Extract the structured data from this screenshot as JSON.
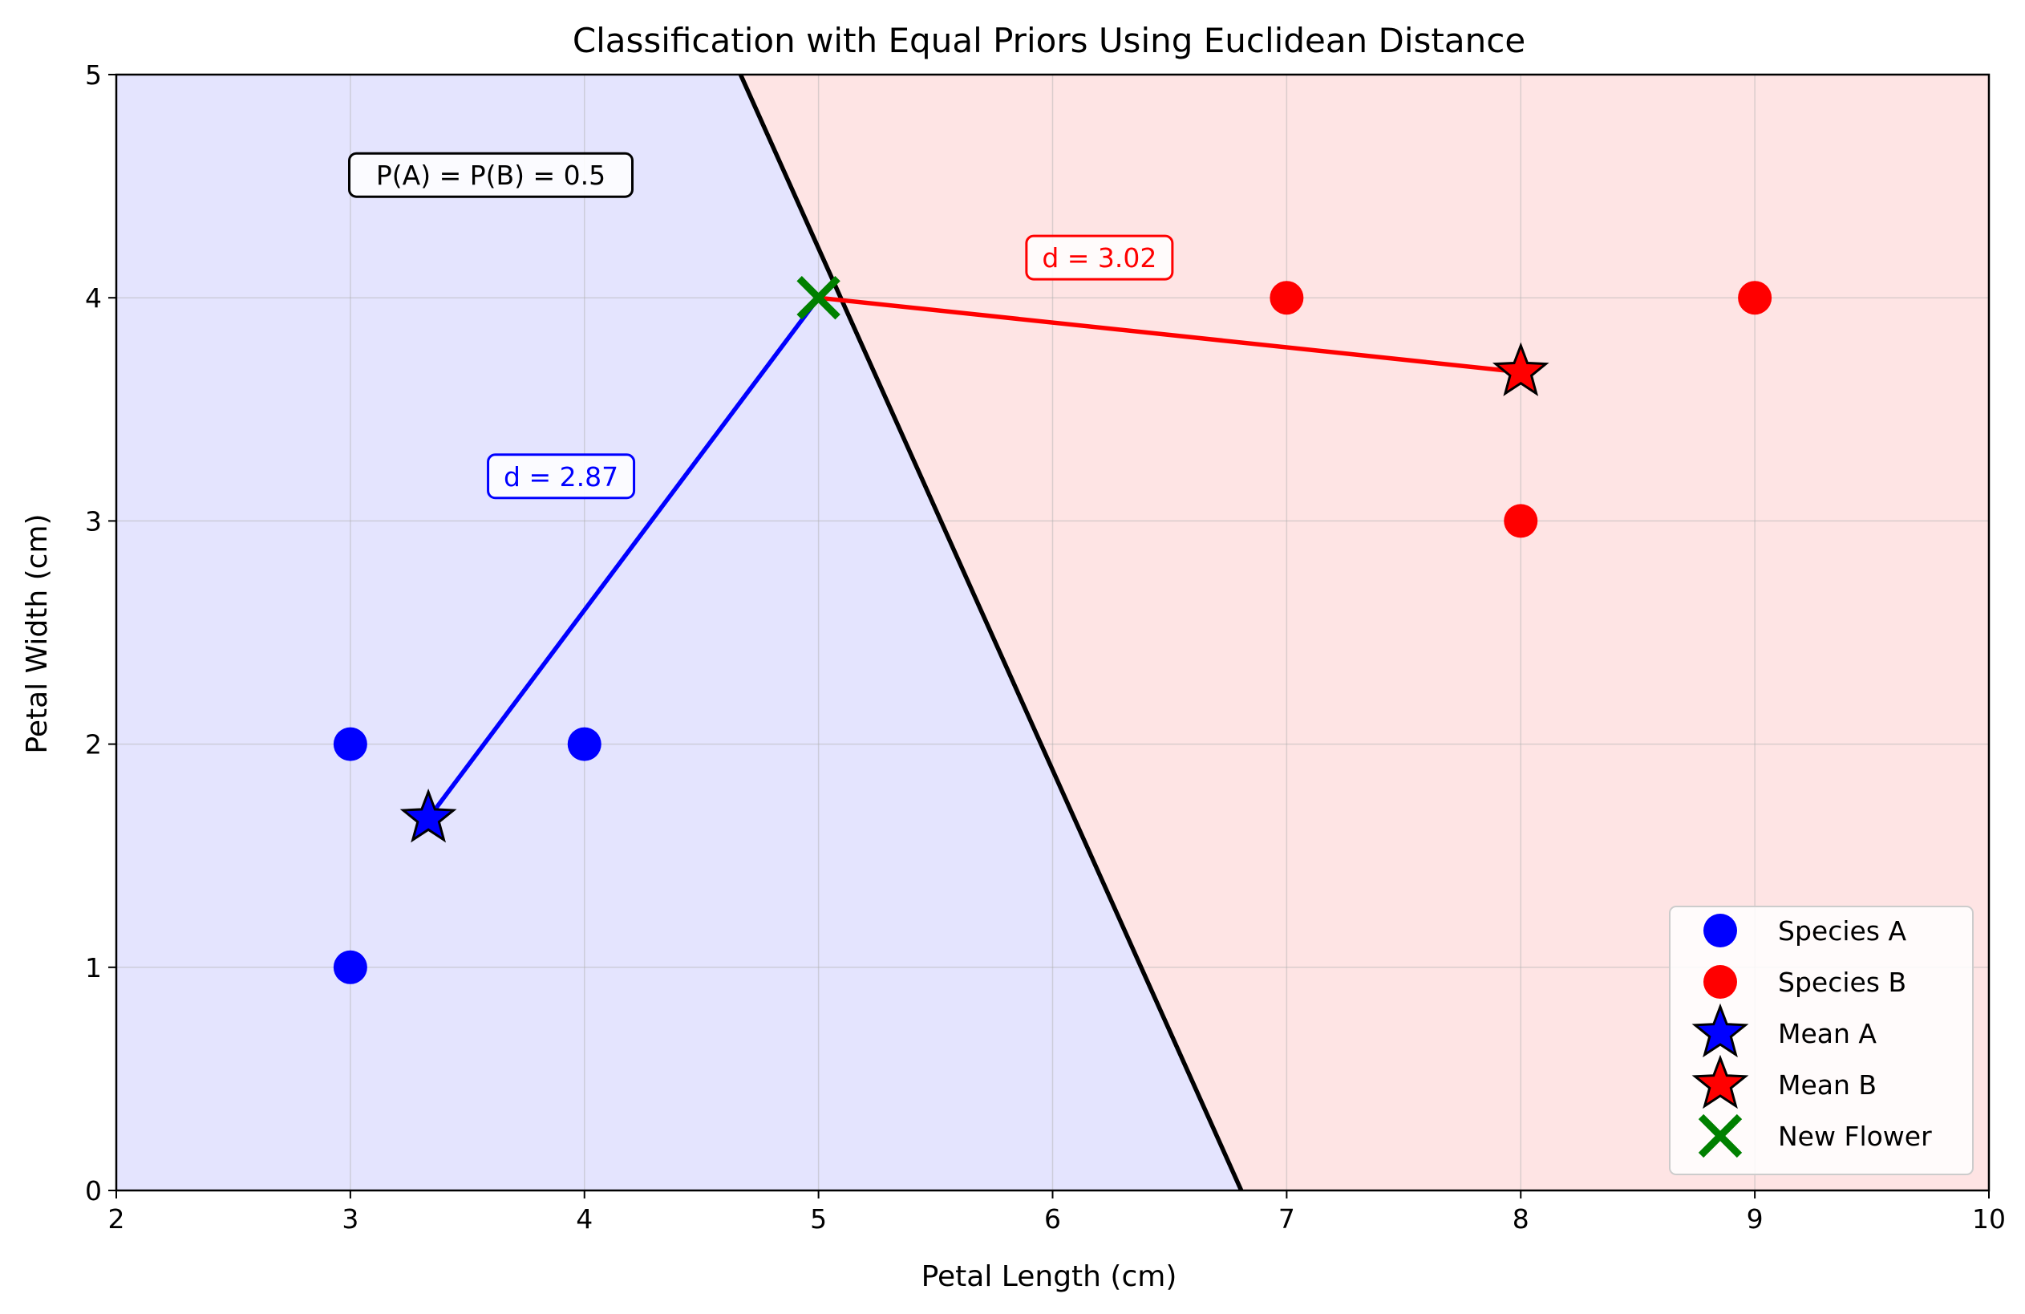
{
  "chart_data": {
    "type": "scatter",
    "title": "Classification with Equal Priors Using Euclidean Distance",
    "xlabel": "Petal Length (cm)",
    "ylabel": "Petal Width (cm)",
    "xlim": [
      2,
      10
    ],
    "ylim": [
      0,
      5
    ],
    "xticks": [
      2,
      3,
      4,
      5,
      6,
      7,
      8,
      9,
      10
    ],
    "yticks": [
      0,
      1,
      2,
      3,
      4,
      5
    ],
    "grid": true,
    "legend_position": "lower-right",
    "colors": {
      "region_a": "#e4e4fe",
      "region_b": "#fee4e4",
      "species_a": "#0000ff",
      "species_b": "#ff0000",
      "new_flower": "#008000",
      "boundary": "#000000"
    },
    "series": [
      {
        "name": "Species A",
        "marker": "circle",
        "color": "#0000ff",
        "points": [
          [
            3,
            2
          ],
          [
            4,
            2
          ],
          [
            3,
            1
          ]
        ]
      },
      {
        "name": "Species B",
        "marker": "circle",
        "color": "#ff0000",
        "points": [
          [
            7,
            4
          ],
          [
            9,
            4
          ],
          [
            8,
            3
          ]
        ]
      },
      {
        "name": "Mean A",
        "marker": "star",
        "color": "#0000ff",
        "points": [
          [
            3.333,
            1.667
          ]
        ]
      },
      {
        "name": "Mean B",
        "marker": "star",
        "color": "#ff0000",
        "points": [
          [
            8.0,
            3.667
          ]
        ]
      },
      {
        "name": "New Flower",
        "marker": "x",
        "color": "#008000",
        "points": [
          [
            5,
            4
          ]
        ]
      }
    ],
    "distance_lines": [
      {
        "from": [
          5,
          4
        ],
        "to": [
          3.333,
          1.667
        ],
        "color": "#0000ff",
        "label": "d = 2.87",
        "label_at": [
          3.9,
          3.2
        ]
      },
      {
        "from": [
          5,
          4
        ],
        "to": [
          8.0,
          3.667
        ],
        "color": "#ff0000",
        "label": "d = 3.02",
        "label_at": [
          6.2,
          4.18
        ]
      }
    ],
    "decision_boundary": {
      "x_at_top": 4.667,
      "x_at_bottom": 6.806
    },
    "annotations": [
      {
        "text": "P(A) = P(B) = 0.5",
        "at": [
          3.6,
          4.55
        ]
      }
    ]
  }
}
